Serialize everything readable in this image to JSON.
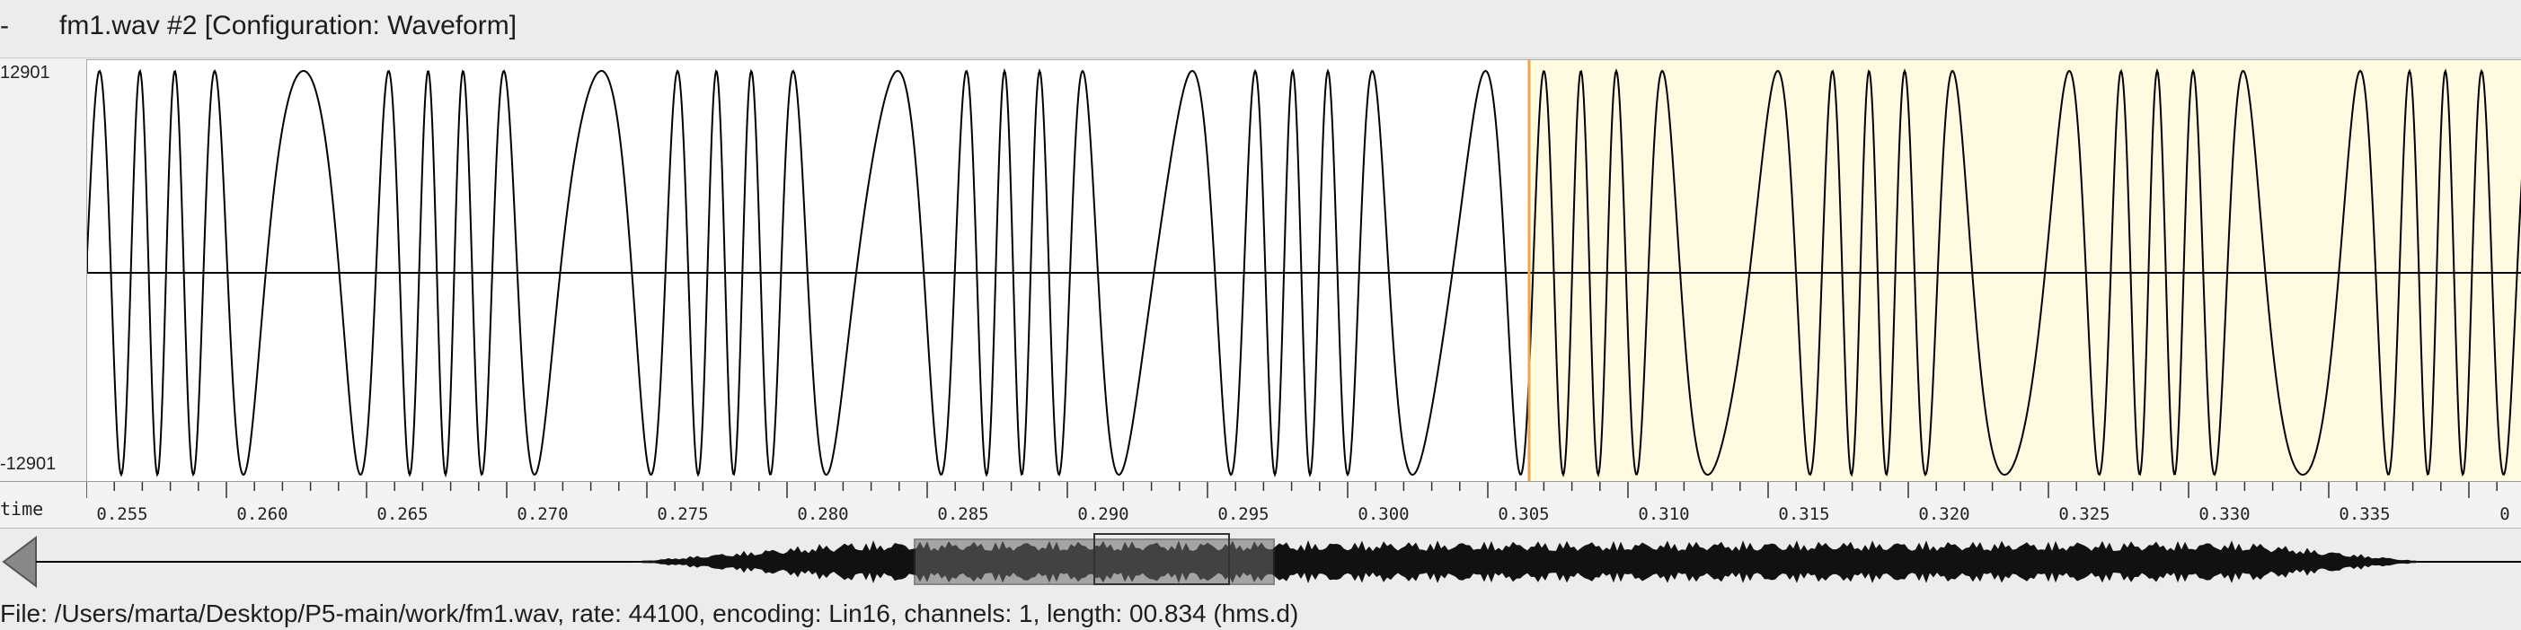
{
  "window": {
    "dash": "-",
    "title": "fm1.wav #2 [Configuration: Waveform]"
  },
  "waveform": {
    "max_label": "12901",
    "min_label": "-12901",
    "selection_color": "#fffbe0",
    "cursor_color": "#f2a24a",
    "line_color": "#000000"
  },
  "time_axis": {
    "label": "time",
    "ticks": [
      "0.255",
      "0.260",
      "0.265",
      "0.270",
      "0.275",
      "0.280",
      "0.285",
      "0.290",
      "0.295",
      "0.300",
      "0.305",
      "0.310",
      "0.315",
      "0.320",
      "0.325",
      "0.330",
      "0.335",
      "0"
    ]
  },
  "overview": {
    "left_arrow_icon": "triangle-left-icon"
  },
  "status": {
    "text": "File: /Users/marta/Desktop/P5-main/work/fm1.wav, rate: 44100, encoding: Lin16, channels: 1, length: 00.834 (hms.d)"
  }
}
